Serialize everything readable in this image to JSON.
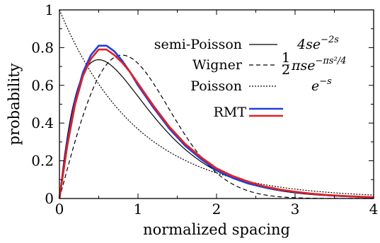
{
  "chart_data": {
    "type": "line",
    "xlabel": "normalized spacing",
    "ylabel": "probability",
    "xlim": [
      0,
      4
    ],
    "ylim": [
      0,
      1
    ],
    "x_ticks": [
      "0",
      "1",
      "2",
      "3",
      "4"
    ],
    "y_ticks": [
      "0",
      "0.2",
      "0.4",
      "0.6",
      "0.8",
      "1"
    ],
    "grid": false,
    "legend_position": "top-right",
    "analytic_curves": [
      {
        "name": "semi-Poisson",
        "formula_base": "4se",
        "formula_exp": "−2s",
        "style": "solid",
        "color": "#000000"
      },
      {
        "name": "Wigner",
        "formula_frac_num": "1",
        "formula_frac_den": "2",
        "formula_base": "πse",
        "formula_exp": "−πs²/4",
        "style": "dashed",
        "color": "#000000"
      },
      {
        "name": "Poisson",
        "formula_base": "e",
        "formula_exp": "−s",
        "style": "dotted",
        "color": "#000000"
      }
    ],
    "rmt_label": "RMT",
    "series": [
      {
        "color": "#1f3fe0",
        "x": [
          0,
          0.1,
          0.2,
          0.3,
          0.4,
          0.5,
          0.6,
          0.7,
          0.8,
          0.9,
          1.0,
          1.2,
          1.4,
          1.6,
          1.8,
          2.0,
          2.2,
          2.4,
          2.6,
          2.8,
          3.0,
          3.2,
          3.4,
          3.6,
          3.8,
          4.0
        ],
        "y": [
          0,
          0.3,
          0.52,
          0.67,
          0.76,
          0.81,
          0.81,
          0.78,
          0.73,
          0.67,
          0.6,
          0.48,
          0.37,
          0.28,
          0.21,
          0.15,
          0.11,
          0.08,
          0.06,
          0.045,
          0.035,
          0.025,
          0.018,
          0.013,
          0.009,
          0.006
        ]
      },
      {
        "color": "#e62020",
        "x": [
          0,
          0.1,
          0.2,
          0.3,
          0.4,
          0.5,
          0.6,
          0.7,
          0.8,
          0.9,
          1.0,
          1.2,
          1.4,
          1.6,
          1.8,
          2.0,
          2.2,
          2.4,
          2.6,
          2.8,
          3.0,
          3.2,
          3.4,
          3.6,
          3.8,
          4.0
        ],
        "y": [
          0,
          0.28,
          0.5,
          0.65,
          0.74,
          0.79,
          0.79,
          0.76,
          0.72,
          0.67,
          0.61,
          0.49,
          0.38,
          0.29,
          0.22,
          0.16,
          0.12,
          0.09,
          0.065,
          0.048,
          0.036,
          0.026,
          0.019,
          0.014,
          0.01,
          0.007
        ]
      }
    ]
  }
}
